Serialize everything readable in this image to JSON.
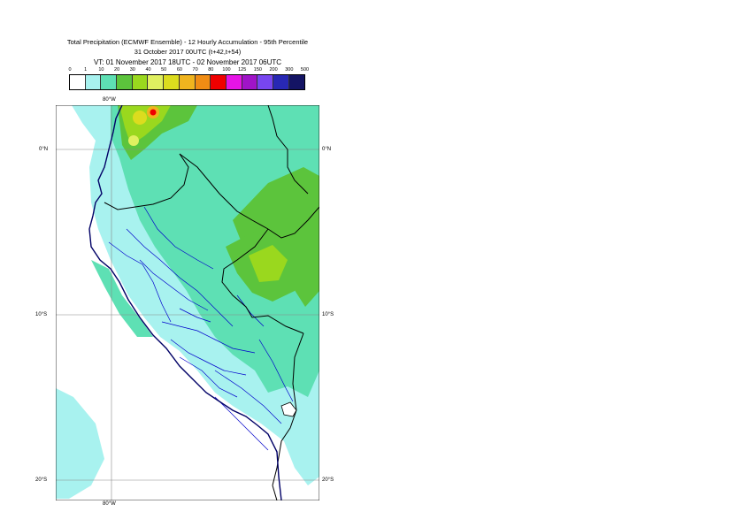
{
  "title": {
    "line1": "Total Precipitation (ECMWF Ensemble) - 12 Hourly Accumulation - 95th Percentile",
    "line2": "31 October 2017 00UTC (t+42,t+54)",
    "line3": "VT: 01 November 2017 18UTC - 02 November 2017 06UTC"
  },
  "legend": {
    "thresholds": [
      "0",
      "1",
      "10",
      "20",
      "30",
      "40",
      "50",
      "60",
      "70",
      "80",
      "100",
      "125",
      "150",
      "200",
      "300",
      "500"
    ],
    "colors": [
      "#ffffff",
      "#a8f2ef",
      "#5ee0b4",
      "#5cc43c",
      "#9ad81e",
      "#e0f060",
      "#dcdc1e",
      "#f0b41e",
      "#f08c14",
      "#f00000",
      "#e614e6",
      "#a014c8",
      "#7846f0",
      "#2828b4",
      "#141464"
    ]
  },
  "axis_labels": {
    "lon_top": "80°W",
    "lon_bottom": "80°W",
    "lat_0_left": "0°N",
    "lat_0_right": "0°N",
    "lat_10_left": "10°S",
    "lat_10_right": "10°S",
    "lat_20_left": "20°S",
    "lat_20_right": "20°S"
  }
}
